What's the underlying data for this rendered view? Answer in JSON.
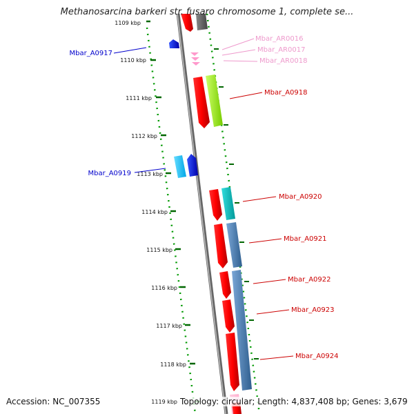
{
  "title": "Methanosarcina barkeri str. fusaro chromosome 1, complete se...",
  "accession": "Accession: NC_007355",
  "summary": "Topology: circular; Length: 4,837,408 bp; Genes: 3,679",
  "ticks": [
    "1109 kbp",
    "1110 kbp",
    "1111 kbp",
    "1112 kbp",
    "1113 kbp",
    "1114 kbp",
    "1115 kbp",
    "1116 kbp",
    "1117 kbp",
    "1118 kbp",
    "1119 kbp"
  ],
  "genes": [
    {
      "id": "Mbar_A0917",
      "color": "#0000cc"
    },
    {
      "id": "Mbar_AR0016",
      "color": "#ee99cc"
    },
    {
      "id": "Mbar_AR0017",
      "color": "#ee99cc"
    },
    {
      "id": "Mbar_AR0018",
      "color": "#ee99cc"
    },
    {
      "id": "Mbar_A0918",
      "color": "#cc0000"
    },
    {
      "id": "Mbar_A0919",
      "color": "#0000cc"
    },
    {
      "id": "Mbar_A0920",
      "color": "#cc0000"
    },
    {
      "id": "Mbar_A0921",
      "color": "#cc0000"
    },
    {
      "id": "Mbar_A0922",
      "color": "#cc0000"
    },
    {
      "id": "Mbar_A0923",
      "color": "#cc0000"
    },
    {
      "id": "Mbar_A0924",
      "color": "#cc0000"
    }
  ],
  "colors": {
    "forward_cds": "#ff0000",
    "reverse_cds": "#0000ff",
    "rrna_trna": "#ff99cc",
    "cog_green": "#99ff33",
    "cog_cyan": "#00cccc",
    "cog_steel": "#4682b4",
    "backbone": "#888888",
    "tick": "#006600"
  }
}
